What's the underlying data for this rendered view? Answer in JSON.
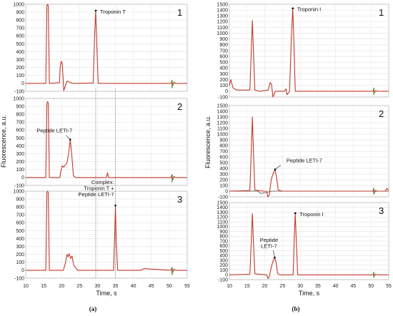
{
  "chart_data": [
    {
      "type": "line",
      "figure_label": "(a)",
      "ylabel": "Fluorescence, a.u.",
      "xlabel": "Time, s",
      "xlim": [
        10,
        55
      ],
      "xticks": [
        10,
        15,
        20,
        25,
        30,
        35,
        40,
        45,
        50,
        55
      ],
      "grid": true,
      "line_color": "#c0392b",
      "markers": [
        {
          "label": "Troponin T",
          "x": 29.5
        },
        {
          "label": "Complex: Troponin T + Peptide LETI-7",
          "x": 35.0
        }
      ],
      "panels": [
        {
          "number": "1",
          "ylim": [
            -100,
            1000
          ],
          "yticks": [
            -100,
            0,
            100,
            200,
            300,
            400,
            500,
            600,
            700,
            800,
            900,
            1000
          ],
          "annotations": [
            {
              "text": "Troponin T",
              "x": 29.5,
              "y": 920
            }
          ],
          "x": [
            10,
            15.6,
            15.9,
            16.1,
            16.3,
            16.6,
            18,
            19.4,
            19.6,
            19.9,
            20.2,
            20.6,
            21.5,
            23,
            28.8,
            29.2,
            29.5,
            29.8,
            30.2,
            35,
            45,
            50.5,
            50.7,
            51,
            51.3,
            51.7,
            55
          ],
          "y": [
            0,
            0,
            980,
            1000,
            980,
            0,
            5,
            10,
            200,
            280,
            250,
            -90,
            30,
            0,
            5,
            600,
            920,
            500,
            0,
            0,
            0,
            0,
            30,
            -25,
            15,
            0,
            0
          ]
        },
        {
          "number": "2",
          "ylim": [
            -100,
            1000
          ],
          "yticks": [
            -100,
            0,
            100,
            200,
            300,
            400,
            500,
            600,
            700,
            800,
            900,
            1000
          ],
          "annotations": [
            {
              "text": "Peptide LETI-7",
              "x": 22.4,
              "y": 480
            }
          ],
          "x": [
            10,
            15.6,
            15.9,
            16.1,
            16.3,
            16.6,
            19.5,
            19.8,
            20.2,
            20.6,
            21.5,
            22.0,
            22.4,
            22.8,
            23.3,
            24,
            32.5,
            32.8,
            33.1,
            35,
            45,
            50.5,
            50.7,
            51,
            51.3,
            51.7,
            55
          ],
          "y": [
            0,
            0,
            940,
            960,
            940,
            0,
            0,
            80,
            150,
            130,
            190,
            320,
            480,
            300,
            20,
            0,
            0,
            60,
            0,
            0,
            0,
            0,
            35,
            -25,
            15,
            0,
            0
          ]
        },
        {
          "number": "3",
          "ylim": [
            -100,
            1000
          ],
          "yticks": [
            -100,
            0,
            100,
            200,
            300,
            400,
            500,
            600,
            700,
            800,
            900,
            1000
          ],
          "annotations": [
            {
              "text": "Complex:\nTroponin T +\nPeptide LETI-7",
              "x": 35.0,
              "y": 820
            }
          ],
          "x": [
            10,
            15.6,
            15.9,
            16.1,
            16.3,
            16.6,
            20.5,
            21.0,
            21.5,
            21.8,
            22.1,
            22.5,
            22.9,
            23.4,
            24.5,
            34.5,
            34.8,
            35.0,
            35.2,
            35.6,
            42,
            43,
            50.5,
            50.7,
            51,
            51.3,
            51.7,
            55
          ],
          "y": [
            0,
            0,
            980,
            1000,
            980,
            0,
            0,
            80,
            200,
            170,
            210,
            150,
            180,
            60,
            0,
            0,
            500,
            820,
            400,
            0,
            0,
            20,
            0,
            30,
            -25,
            15,
            0,
            0
          ]
        }
      ]
    },
    {
      "type": "line",
      "figure_label": "(b)",
      "ylabel": "Fluorescence, a.u.",
      "xlabel": "Time, s",
      "xlim": [
        10,
        55
      ],
      "xticks": [
        10,
        15,
        20,
        25,
        30,
        35,
        40,
        45,
        50,
        55
      ],
      "grid": true,
      "line_color": "#c0392b",
      "panels": [
        {
          "number": "1",
          "ylim": [
            -100,
            1500
          ],
          "yticks": [
            -100,
            0,
            100,
            200,
            300,
            400,
            500,
            600,
            700,
            800,
            900,
            1000,
            1100,
            1200,
            1300,
            1400,
            1500
          ],
          "annotations": [
            {
              "text": "Troponin I",
              "x": 27.9,
              "y": 1430
            }
          ],
          "x": [
            10,
            10.4,
            11,
            12,
            15.8,
            16.2,
            16.5,
            16.8,
            17.2,
            18.5,
            21,
            21.5,
            21.9,
            22.3,
            23,
            25.5,
            26,
            26.3,
            27.0,
            27.5,
            27.9,
            28.2,
            28.6,
            32,
            50.5,
            50.7,
            51,
            51.3,
            51.7,
            55
          ],
          "y": [
            100,
            200,
            60,
            20,
            20,
            700,
            1220,
            700,
            20,
            0,
            20,
            150,
            120,
            -100,
            0,
            0,
            40,
            -60,
            0,
            900,
            1430,
            900,
            0,
            0,
            0,
            30,
            -25,
            15,
            0,
            0
          ]
        },
        {
          "number": "2",
          "ylim": [
            -100,
            1500
          ],
          "yticks": [
            -100,
            0,
            100,
            200,
            300,
            400,
            500,
            600,
            700,
            800,
            900,
            1000,
            1100,
            1200,
            1300,
            1400,
            1500
          ],
          "annotations": [
            {
              "text": "Peptide LETI-7",
              "x": 22.9,
              "y": 380
            }
          ],
          "x": [
            10,
            15.8,
            16.2,
            16.5,
            16.8,
            17.2,
            19.5,
            20.5,
            20.9,
            21.3,
            21.8,
            22.3,
            22.9,
            23.3,
            23.8,
            25,
            50.5,
            50.7,
            51,
            51.3,
            51.7,
            54,
            54.5,
            55
          ],
          "y": [
            0,
            10,
            700,
            1300,
            700,
            20,
            0,
            0,
            -100,
            -60,
            200,
            300,
            380,
            250,
            20,
            0,
            0,
            35,
            -25,
            15,
            0,
            0,
            50,
            10
          ],
          "x2": [
            10,
            18,
            19,
            22,
            55
          ],
          "y2": [
            0,
            0,
            -40,
            0,
            0
          ]
        },
        {
          "number": "3",
          "ylim": [
            -100,
            1500
          ],
          "yticks": [
            -100,
            0,
            100,
            200,
            300,
            400,
            500,
            600,
            700,
            800,
            900,
            1000,
            1100,
            1200,
            1300,
            1400,
            1500
          ],
          "annotations": [
            {
              "text": "Troponin I",
              "x": 28.6,
              "y": 1280
            },
            {
              "text": "Peptide\nLETI-7",
              "x": 22.8,
              "y": 360
            }
          ],
          "x": [
            10,
            15.8,
            16.2,
            16.5,
            16.8,
            17.2,
            20.5,
            20.9,
            21.3,
            21.8,
            22.3,
            22.8,
            23.2,
            23.6,
            24.2,
            28,
            28.3,
            28.6,
            28.9,
            29.3,
            32,
            50.5,
            50.7,
            51,
            51.3,
            51.7,
            55
          ],
          "y": [
            0,
            10,
            700,
            1270,
            700,
            20,
            0,
            -80,
            -30,
            150,
            280,
            360,
            260,
            30,
            0,
            0,
            700,
            1280,
            700,
            0,
            0,
            0,
            30,
            -25,
            15,
            0,
            0
          ]
        }
      ]
    }
  ]
}
